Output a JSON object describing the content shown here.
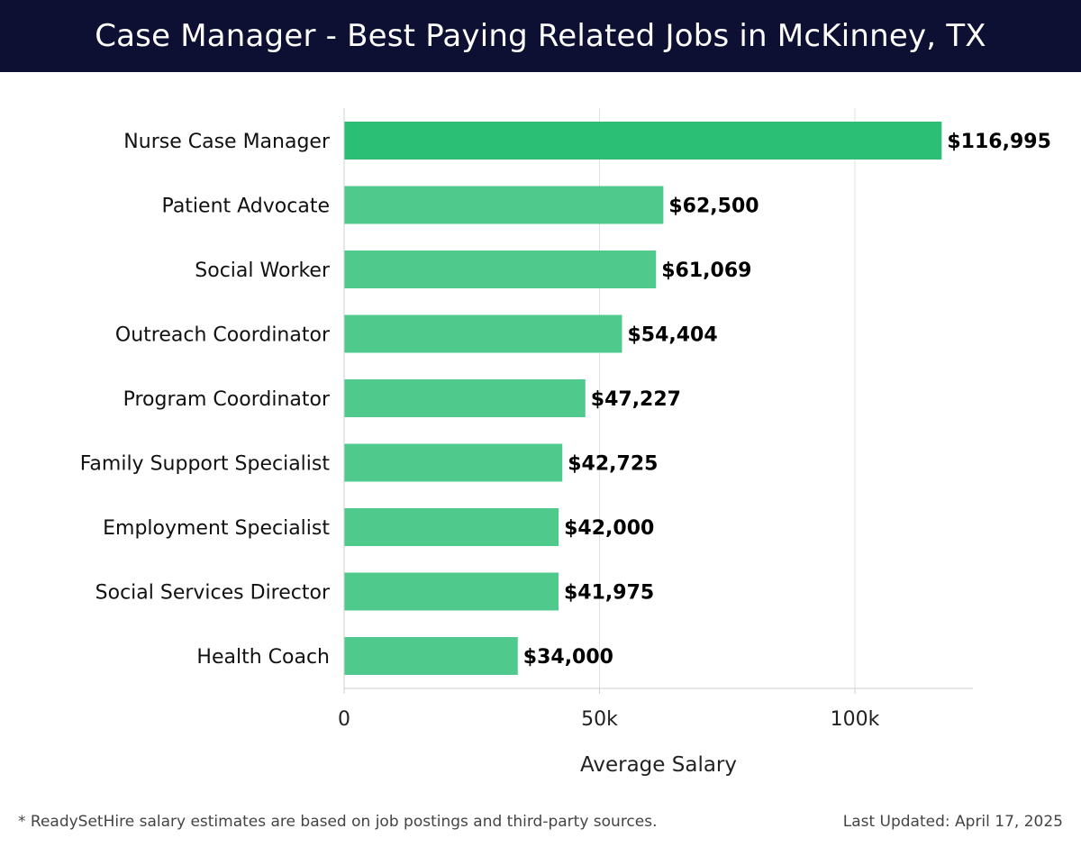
{
  "header": {
    "title": "Case Manager - Best Paying Related Jobs in McKinney, TX"
  },
  "chart_data": {
    "type": "bar",
    "orientation": "horizontal",
    "title": "Case Manager - Best Paying Related Jobs in McKinney, TX",
    "xlabel": "Average Salary",
    "ylabel": "",
    "xlim": [
      0,
      123000
    ],
    "xticks": [
      0,
      50000,
      100000
    ],
    "xtick_labels": [
      "0",
      "50k",
      "100k"
    ],
    "grid": true,
    "categories": [
      "Nurse Case Manager",
      "Patient Advocate",
      "Social Worker",
      "Outreach Coordinator",
      "Program Coordinator",
      "Family Support Specialist",
      "Employment Specialist",
      "Social Services Director",
      "Health Coach"
    ],
    "values": [
      116995,
      62500,
      61069,
      54404,
      47227,
      42725,
      42000,
      41975,
      34000
    ],
    "value_labels": [
      "$116,995",
      "$62,500",
      "$61,069",
      "$54,404",
      "$47,227",
      "$42,725",
      "$42,000",
      "$41,975",
      "$34,000"
    ],
    "colors": {
      "top_bar": "#2bbf76",
      "bar": "#4fc98c",
      "grid": "#e2e2e2",
      "axis": "#cfcfcf"
    }
  },
  "footer": {
    "note": "* ReadySetHire salary estimates are based on job postings and third-party sources.",
    "updated": "Last Updated: April 17, 2025"
  }
}
